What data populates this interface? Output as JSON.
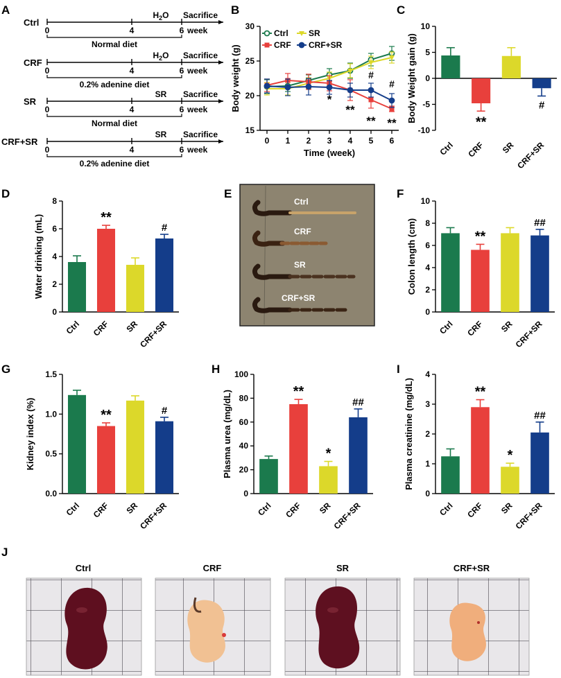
{
  "colors": {
    "ctrl": "#1b7a4d",
    "crf": "#e8403c",
    "sr": "#dcd82a",
    "crfsr": "#143d8a",
    "axis": "#000000"
  },
  "panel_letters": [
    "A",
    "B",
    "C",
    "D",
    "E",
    "F",
    "G",
    "H",
    "I",
    "J"
  ],
  "schematic": {
    "rows": [
      {
        "group": "Ctrl",
        "diet": "Normal diet",
        "treatment": "H2O",
        "endpoint": "Sacrifice",
        "ticks": [
          "0",
          "4",
          "6"
        ],
        "unit": "week"
      },
      {
        "group": "CRF",
        "diet": "0.2% adenine diet",
        "treatment": "H2O",
        "endpoint": "Sacrifice",
        "ticks": [
          "0",
          "4",
          "6"
        ],
        "unit": "week"
      },
      {
        "group": "SR",
        "diet": "Normal diet",
        "treatment": "SR",
        "endpoint": "Sacrifice",
        "ticks": [
          "0",
          "4",
          "6"
        ],
        "unit": "week"
      },
      {
        "group": "CRF+SR",
        "diet": "0.2% adenine diet",
        "treatment": "SR",
        "endpoint": "Sacrifice",
        "ticks": [
          "0",
          "4",
          "6"
        ],
        "unit": "week"
      }
    ]
  },
  "chart_data": [
    {
      "panel": "B",
      "type": "line",
      "title": "",
      "xlabel": "Time (week)",
      "ylabel": "Body weight (g)",
      "x": [
        0,
        1,
        2,
        3,
        4,
        5,
        6
      ],
      "xlim": [
        0,
        6
      ],
      "ylim": [
        15,
        30
      ],
      "yticks": [
        15,
        20,
        25,
        30
      ],
      "legend": [
        "Ctrl",
        "SR",
        "CRF",
        "CRF+SR"
      ],
      "series": [
        {
          "name": "Ctrl",
          "values": [
            21.3,
            21.4,
            22.2,
            23.0,
            23.6,
            25.2,
            26.1
          ],
          "errors": [
            1.0,
            0.8,
            0.8,
            0.9,
            1.1,
            0.9,
            1.0
          ]
        },
        {
          "name": "SR",
          "values": [
            21.0,
            21.0,
            21.8,
            22.5,
            23.6,
            24.8,
            25.5
          ],
          "errors": [
            0.9,
            0.9,
            0.8,
            0.9,
            1.0,
            0.9,
            0.8
          ]
        },
        {
          "name": "CRF",
          "values": [
            21.5,
            22.2,
            22.0,
            21.8,
            20.8,
            19.4,
            18.1
          ],
          "errors": [
            0.9,
            1.0,
            1.1,
            1.1,
            1.5,
            1.2,
            0.4
          ]
        },
        {
          "name": "CRF+SR",
          "values": [
            21.4,
            21.2,
            21.3,
            21.2,
            20.8,
            20.8,
            19.3
          ],
          "errors": [
            1.0,
            1.2,
            1.2,
            1.0,
            1.0,
            1.0,
            1.0
          ]
        }
      ],
      "annotations": [
        {
          "text": "*",
          "x": 3,
          "y": 18.9
        },
        {
          "text": "**",
          "x": 4,
          "y": 17.4
        },
        {
          "text": "**",
          "x": 5,
          "y": 15.8
        },
        {
          "text": "**",
          "x": 6,
          "y": 15.5
        },
        {
          "text": "#",
          "x": 5,
          "y": 22.5
        },
        {
          "text": "#",
          "x": 6,
          "y": 21.2
        }
      ]
    },
    {
      "panel": "C",
      "type": "bar",
      "title": "",
      "xlabel": "",
      "ylabel": "Body Weight gain (g)",
      "categories": [
        "Ctrl",
        "CRF",
        "SR",
        "CRF+SR"
      ],
      "values": [
        4.4,
        -4.8,
        4.3,
        -1.9
      ],
      "errors": [
        1.5,
        1.5,
        1.6,
        1.5
      ],
      "ylim": [
        -10,
        10
      ],
      "yticks": [
        -10,
        -5,
        0,
        5,
        10
      ],
      "marks": [
        "",
        "**",
        "",
        "#"
      ]
    },
    {
      "panel": "D",
      "type": "bar",
      "title": "",
      "xlabel": "",
      "ylabel": "Water drinking (mL)",
      "categories": [
        "Ctrl",
        "CRF",
        "SR",
        "CRF+SR"
      ],
      "values": [
        3.6,
        6.0,
        3.4,
        5.3
      ],
      "errors": [
        0.45,
        0.25,
        0.5,
        0.3
      ],
      "ylim": [
        0,
        8
      ],
      "yticks": [
        0,
        2,
        4,
        6,
        8
      ],
      "marks": [
        "",
        "**",
        "",
        "#"
      ]
    },
    {
      "panel": "F",
      "type": "bar",
      "title": "",
      "xlabel": "",
      "ylabel": "Colon length (cm)",
      "categories": [
        "Ctrl",
        "CRF",
        "SR",
        "CRF+SR"
      ],
      "values": [
        7.1,
        5.6,
        7.1,
        6.9
      ],
      "errors": [
        0.5,
        0.5,
        0.5,
        0.55
      ],
      "ylim": [
        0,
        10
      ],
      "yticks": [
        0,
        2,
        4,
        6,
        8,
        10
      ],
      "marks": [
        "",
        "**",
        "",
        "##"
      ]
    },
    {
      "panel": "G",
      "type": "bar",
      "title": "",
      "xlabel": "",
      "ylabel": "Kidney index (%)",
      "categories": [
        "Ctrl",
        "CRF",
        "SR",
        "CRF+SR"
      ],
      "values": [
        1.24,
        0.85,
        1.17,
        0.91
      ],
      "errors": [
        0.06,
        0.04,
        0.06,
        0.05
      ],
      "ylim": [
        0,
        1.5
      ],
      "yticks": [
        0.0,
        0.5,
        1.0,
        1.5
      ],
      "marks": [
        "",
        "**",
        "",
        "#"
      ]
    },
    {
      "panel": "H",
      "type": "bar",
      "title": "",
      "xlabel": "",
      "ylabel": "Plasma urea (mg/dL)",
      "categories": [
        "Ctrl",
        "CRF",
        "SR",
        "CRF+SR"
      ],
      "values": [
        29,
        75,
        23,
        64
      ],
      "errors": [
        2.5,
        4,
        4,
        7
      ],
      "ylim": [
        0,
        100
      ],
      "yticks": [
        0,
        20,
        40,
        60,
        80,
        100
      ],
      "marks": [
        "",
        "**",
        "*",
        "##"
      ]
    },
    {
      "panel": "I",
      "type": "bar",
      "title": "",
      "xlabel": "",
      "ylabel": "Plasma creatinine (mg/dL)",
      "categories": [
        "Ctrl",
        "CRF",
        "SR",
        "CRF+SR"
      ],
      "values": [
        1.25,
        2.9,
        0.9,
        2.05
      ],
      "errors": [
        0.25,
        0.25,
        0.12,
        0.35
      ],
      "ylim": [
        0,
        4
      ],
      "yticks": [
        0,
        1,
        2,
        3,
        4
      ],
      "marks": [
        "",
        "**",
        "*",
        "##"
      ]
    }
  ],
  "colon_photo": {
    "labels": [
      "Ctrl",
      "CRF",
      "SR",
      "CRF+SR"
    ]
  },
  "kidney_photos": {
    "labels": [
      "Ctrl",
      "CRF",
      "SR",
      "CRF+SR"
    ]
  }
}
